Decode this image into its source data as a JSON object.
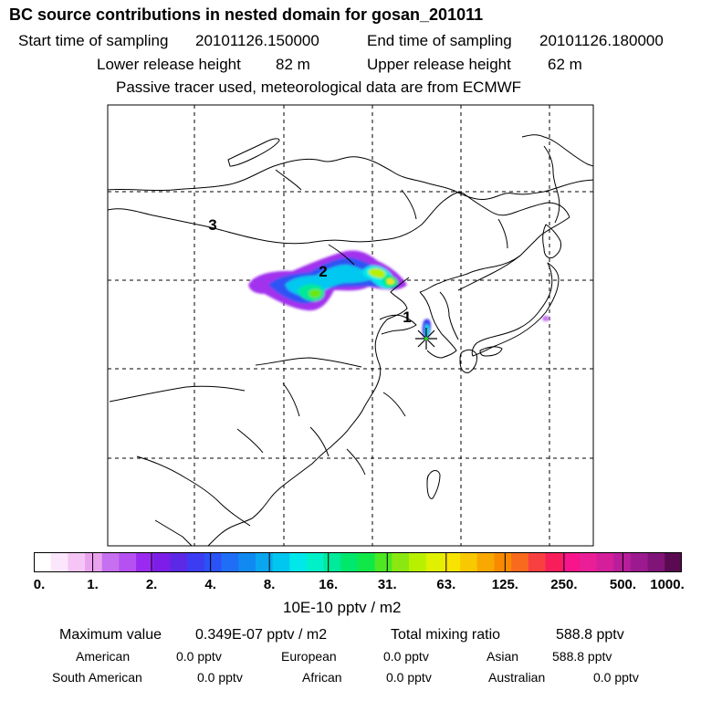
{
  "header": {
    "title": "BC  source contributions in nested domain for gosan_201011",
    "start_label": "Start time of sampling",
    "start_value": "20101126.150000",
    "end_label": "End time of sampling",
    "end_value": "20101126.180000",
    "lower_label": "Lower release height",
    "lower_value": "82 m",
    "upper_label": "Upper release height",
    "upper_value": "62 m",
    "note": "Passive tracer used, meteorological data are from ECMWF"
  },
  "map": {
    "region_labels": [
      "3",
      "2",
      "1"
    ],
    "receptor": "gosan"
  },
  "colorbar": {
    "labels": [
      "0.",
      "1.",
      "2.",
      "4.",
      "8.",
      "16.",
      "31.",
      "63.",
      "125.",
      "250.",
      "500.",
      "1000."
    ],
    "colors": [
      "#ffffff",
      "#fbe6fb",
      "#f5c6f5",
      "#eaa2ef",
      "#c66ff0",
      "#b650f0",
      "#9a2af0",
      "#7c1ee8",
      "#5c29e6",
      "#3c3cf2",
      "#2b52f7",
      "#1e6ff5",
      "#1089f0",
      "#0aa7f0",
      "#00c6f0",
      "#00e8ea",
      "#00f0c8",
      "#00ea9a",
      "#00e86c",
      "#10e848",
      "#4ee822",
      "#8ae810",
      "#b8f000",
      "#e0f000",
      "#f8e400",
      "#f8c800",
      "#f8a800",
      "#f88a00",
      "#f86a1e",
      "#f84040",
      "#f81e5a",
      "#f8148a",
      "#ea1e96",
      "#d41e9a",
      "#b81e9a",
      "#9c1a90",
      "#801478",
      "#5a0a50"
    ],
    "unit": "10E-10 pptv / m2"
  },
  "stats": {
    "max_label": "Maximum value",
    "max_value": "0.349E-07 pptv / m2",
    "total_label": "Total mixing ratio",
    "total_value": "588.8 pptv",
    "regions": [
      {
        "name": "American",
        "value": "0.0 pptv"
      },
      {
        "name": "European",
        "value": "0.0 pptv"
      },
      {
        "name": "Asian",
        "value": "588.8 pptv"
      },
      {
        "name": "South American",
        "value": "0.0 pptv"
      },
      {
        "name": "African",
        "value": "0.0 pptv"
      },
      {
        "name": "Australian",
        "value": "0.0 pptv"
      }
    ]
  }
}
